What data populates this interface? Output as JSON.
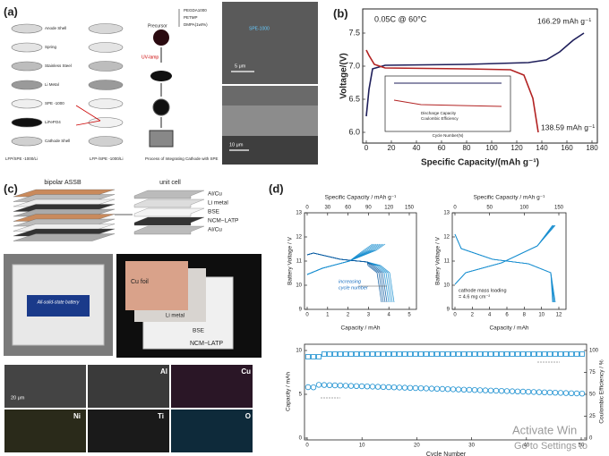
{
  "panel_a": {
    "label": "(a)",
    "layers": [
      "Anode Shell",
      "Spring",
      "Stainless Steel",
      "Li Metal",
      "SPE -1000",
      "LiFePO4",
      "Cathode Shell"
    ],
    "cell_captions": [
      "LFP/SPE -1000/Li",
      "LFP-/SPE -1000/Li"
    ],
    "process_caption": "Process of Integrating Cathode with SPE",
    "precursor": "Precursor",
    "ingredients": [
      "PEGDA1000",
      "PETMP",
      "DMPA(1wt%)"
    ],
    "uv_lamp": "UV-lamp",
    "sem_top": {
      "scale": "5 μm",
      "tag": "SPE-1000"
    },
    "sem_bottom": {
      "scale": "10 μm"
    }
  },
  "panel_b": {
    "label": "(b)",
    "condition": "0.05C @ 60°C",
    "charge_capacity": "166.29 mAh g⁻¹",
    "discharge_capacity": "138.59 mAh g⁻¹",
    "y_label": "Voltage/(V)",
    "x_label": "Specific Capacity/(mAh g⁻¹)",
    "y_ticks": [
      "6.0",
      "6.5",
      "7.0",
      "7.5"
    ],
    "x_ticks": [
      "0",
      "20",
      "40",
      "60",
      "80",
      "100",
      "120",
      "140",
      "160",
      "180"
    ],
    "inset": {
      "legend": [
        "Discharge Capacity",
        "Coulombic Efficiency"
      ],
      "x_label": "Cycle Number(N)"
    }
  },
  "panel_c": {
    "label": "(c)",
    "stack_title": "bipolar ASSB",
    "cell_title": "unit cell",
    "cell_layers": [
      "Al/Cu",
      "Li metal",
      "BSE",
      "NCM−LATP",
      "Al/Cu"
    ],
    "battery_label": "All-solid-state battery",
    "photo_labels": [
      "Cu foil",
      "Li metal",
      "BSE",
      "NCM−LATP"
    ],
    "eds_scale": "20 μm",
    "eds_elements": [
      "Al",
      "Cu",
      "Ni",
      "Ti",
      "O"
    ]
  },
  "panel_d": {
    "label": "(d)",
    "left": {
      "top_label": "Specific Capacity / mAh g⁻¹",
      "top_ticks": [
        "0",
        "30",
        "60",
        "90",
        "120",
        "150"
      ],
      "y_label": "Battery Voltage / V",
      "y_ticks": [
        "9",
        "10",
        "11",
        "12",
        "13"
      ],
      "x_label": "Capacity / mAh",
      "x_ticks": [
        "0",
        "1",
        "2",
        "3",
        "4",
        "5"
      ],
      "note": [
        "increasing",
        "cycle number"
      ]
    },
    "right": {
      "top_label": "Specific Capacity / mAh g⁻¹",
      "top_ticks": [
        "0",
        "50",
        "100",
        "150"
      ],
      "y_label": "Battery Voltage / V",
      "y_ticks": [
        "9",
        "10",
        "11",
        "12",
        "13"
      ],
      "x_label": "Capacity / mAh",
      "x_ticks": [
        "0",
        "2",
        "4",
        "6",
        "8",
        "10",
        "12"
      ],
      "note": [
        "cathode mass loading",
        "= 4.6 mg cm⁻²"
      ]
    },
    "bottom": {
      "y_label": "Capacity / mAh",
      "y_ticks": [
        "0",
        "5",
        "10"
      ],
      "y2_label": "Coulombic Efficiency / %",
      "y2_ticks": [
        "0",
        "25",
        "50",
        "75",
        "100"
      ],
      "x_label": "Cycle Number",
      "x_ticks": [
        "0",
        "10",
        "20",
        "30",
        "40",
        "50"
      ]
    }
  },
  "watermark": {
    "title": "Activate Win",
    "subtitle": "Go to Settings to"
  }
}
